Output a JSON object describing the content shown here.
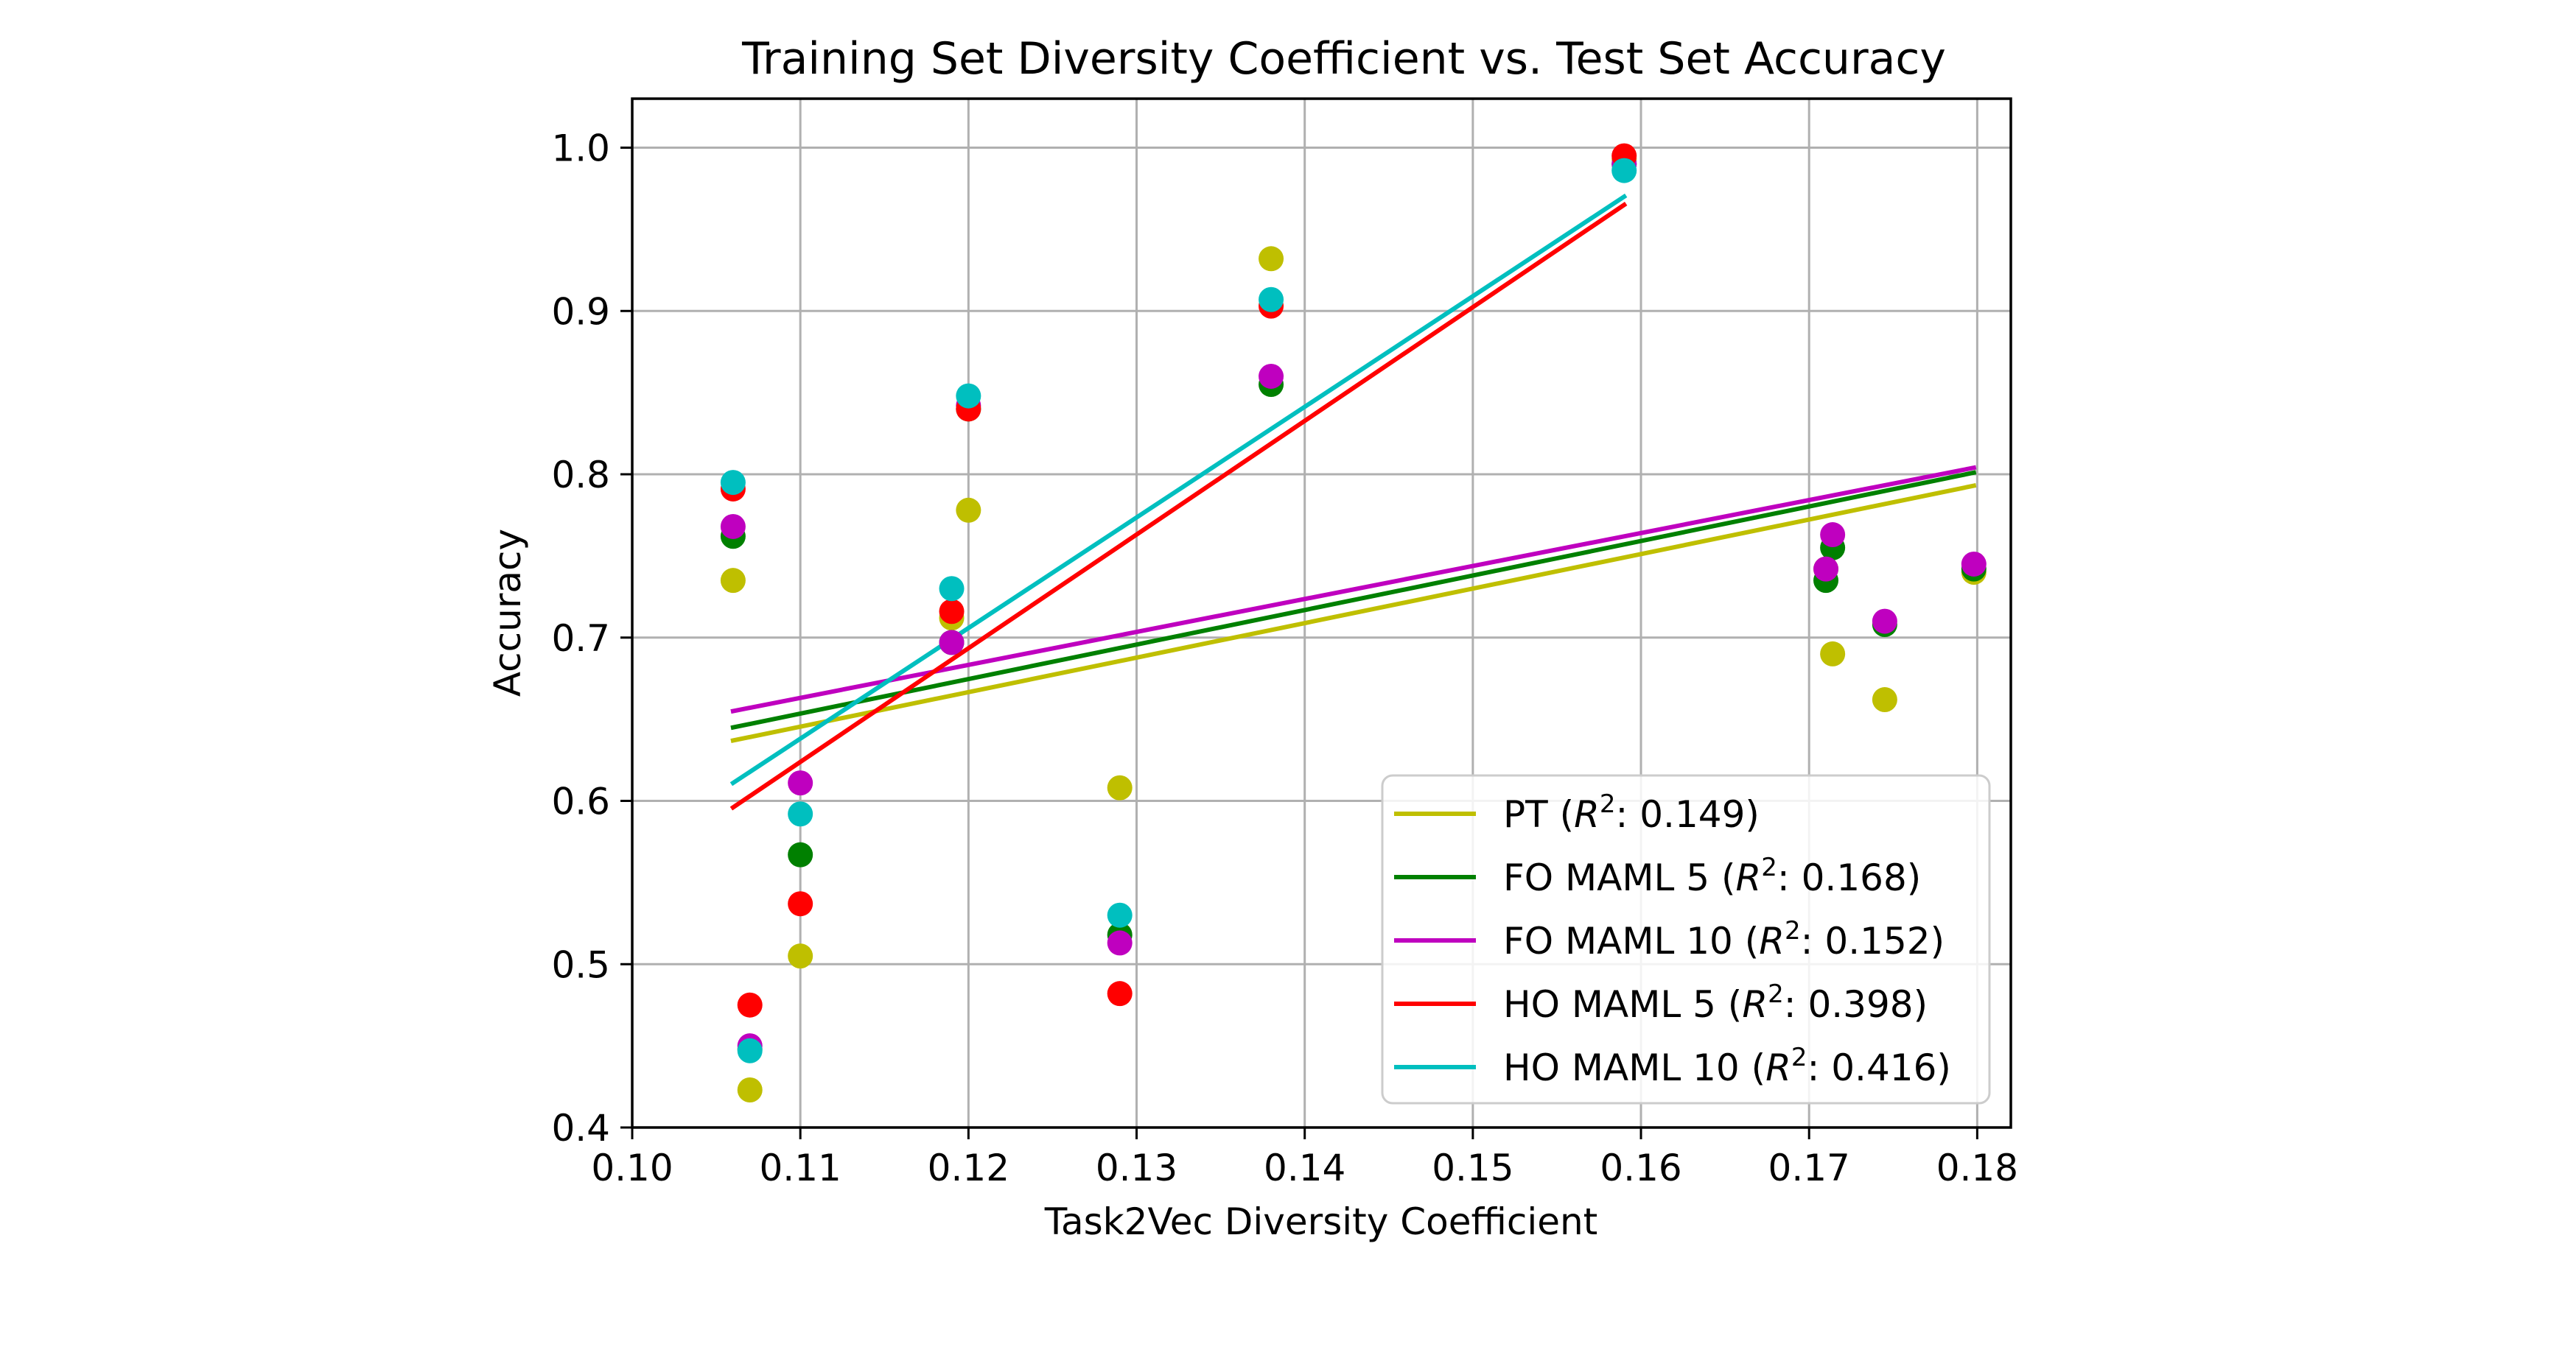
{
  "chart_data": {
    "type": "scatter",
    "title": "Training Set Diversity Coefficient vs. Test Set Accuracy",
    "xlabel": "Task2Vec Diversity Coefficient",
    "ylabel": "Accuracy",
    "xlim": [
      0.1,
      0.182
    ],
    "ylim": [
      0.4,
      1.03
    ],
    "grid": true,
    "legend_position": "lower-right",
    "xticks": [
      "0.10",
      "0.11",
      "0.12",
      "0.13",
      "0.14",
      "0.15",
      "0.16",
      "0.17",
      "0.18"
    ],
    "xtick_values": [
      0.1,
      0.11,
      0.12,
      0.13,
      0.14,
      0.15,
      0.16,
      0.17,
      0.18
    ],
    "yticks": [
      "0.4",
      "0.5",
      "0.6",
      "0.7",
      "0.8",
      "0.9",
      "1.0"
    ],
    "ytick_values": [
      0.4,
      0.5,
      0.6,
      0.7,
      0.8,
      0.9,
      1.0
    ],
    "series": [
      {
        "legend_name": "PT",
        "r2": "0.149",
        "color": "#bfbf00",
        "x": [
          0.106,
          0.107,
          0.11,
          0.119,
          0.12,
          0.129,
          0.138,
          0.159,
          0.171,
          0.1714,
          0.1745,
          0.1798
        ],
        "y": [
          0.735,
          0.423,
          0.505,
          0.712,
          0.778,
          0.608,
          0.932,
          0.993,
          0.742,
          0.69,
          0.662,
          0.74
        ],
        "fit": {
          "x": [
            0.106,
            0.1798
          ],
          "y": [
            0.637,
            0.793
          ]
        }
      },
      {
        "legend_name": "FO MAML 5",
        "r2": "0.168",
        "color": "#008000",
        "x": [
          0.106,
          0.107,
          0.11,
          0.119,
          0.12,
          0.129,
          0.138,
          0.159,
          0.171,
          0.1714,
          0.1745,
          0.1798
        ],
        "y": [
          0.762,
          0.448,
          0.567,
          0.697,
          0.84,
          0.518,
          0.855,
          0.99,
          0.735,
          0.755,
          0.708,
          0.742
        ],
        "fit": {
          "x": [
            0.106,
            0.1798
          ],
          "y": [
            0.645,
            0.801
          ]
        }
      },
      {
        "legend_name": "FO MAML 10",
        "r2": "0.152",
        "color": "#bf00bf",
        "x": [
          0.106,
          0.107,
          0.11,
          0.119,
          0.12,
          0.129,
          0.138,
          0.159,
          0.171,
          0.1714,
          0.1745,
          0.1798
        ],
        "y": [
          0.768,
          0.45,
          0.611,
          0.697,
          0.842,
          0.513,
          0.86,
          0.99,
          0.742,
          0.763,
          0.71,
          0.745
        ],
        "fit": {
          "x": [
            0.106,
            0.1798
          ],
          "y": [
            0.655,
            0.804
          ]
        }
      },
      {
        "legend_name": "HO MAML 5",
        "r2": "0.398",
        "color": "#ff0000",
        "x": [
          0.106,
          0.107,
          0.11,
          0.119,
          0.12,
          0.129,
          0.138,
          0.159
        ],
        "y": [
          0.791,
          0.475,
          0.537,
          0.716,
          0.84,
          0.482,
          0.903,
          0.995
        ],
        "fit": {
          "x": [
            0.106,
            0.159
          ],
          "y": [
            0.596,
            0.965
          ]
        }
      },
      {
        "legend_name": "HO MAML 10",
        "r2": "0.416",
        "color": "#00bfbf",
        "x": [
          0.106,
          0.107,
          0.11,
          0.119,
          0.12,
          0.129,
          0.138,
          0.159
        ],
        "y": [
          0.795,
          0.447,
          0.592,
          0.73,
          0.848,
          0.53,
          0.907,
          0.986
        ],
        "fit": {
          "x": [
            0.106,
            0.159
          ],
          "y": [
            0.611,
            0.97
          ]
        }
      }
    ]
  }
}
